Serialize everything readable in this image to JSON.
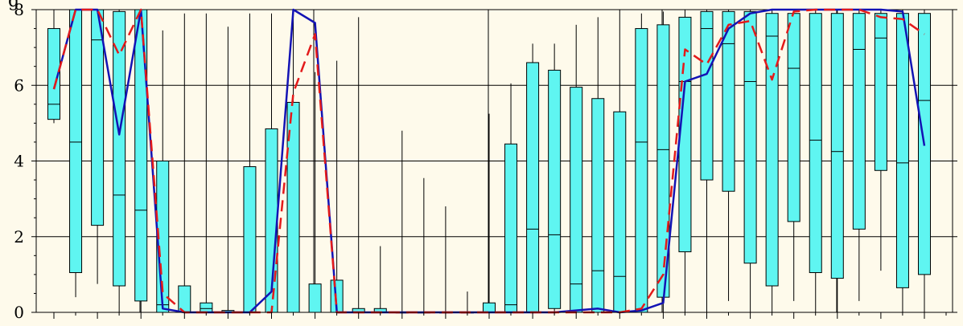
{
  "chart_data": {
    "type": "box",
    "title": "",
    "title_visible_fragment": "g",
    "xlabel": "",
    "ylabel": "",
    "ylim": [
      0,
      8
    ],
    "yticks": [
      0,
      2,
      4,
      6,
      8
    ],
    "grid": true,
    "colors": {
      "background": "#fefaeb",
      "box_fill": "#5ff5f1",
      "box_stroke": "#000000",
      "line_blue": "#1313b4",
      "line_red": "#e31a1a",
      "grid": "#000000"
    },
    "boxes": [
      {
        "x": 1,
        "min": 5.0,
        "q1": 5.1,
        "median": 5.5,
        "q3": 7.5,
        "max": 8.0
      },
      {
        "x": 2,
        "min": 0.4,
        "q1": 1.05,
        "median": 4.5,
        "q3": 8.0,
        "max": 8.0
      },
      {
        "x": 3,
        "min": 0.75,
        "q1": 2.3,
        "median": 7.2,
        "q3": 8.0,
        "max": 8.0
      },
      {
        "x": 4,
        "min": 0.0,
        "q1": 0.7,
        "median": 3.1,
        "q3": 7.95,
        "max": 8.0
      },
      {
        "x": 5,
        "min": 0.0,
        "q1": 0.3,
        "median": 2.7,
        "q3": 8.0,
        "max": 8.0
      },
      {
        "x": 6,
        "min": 0.0,
        "q1": 0.0,
        "median": 0.2,
        "q3": 4.0,
        "max": 7.45
      },
      {
        "x": 7,
        "min": 0.0,
        "q1": 0.0,
        "median": 0.0,
        "q3": 0.7,
        "max": 7.9
      },
      {
        "x": 8,
        "min": 0.0,
        "q1": 0.0,
        "median": 0.1,
        "q3": 0.25,
        "max": 7.9
      },
      {
        "x": 9,
        "min": 0.0,
        "q1": 0.0,
        "median": 0.0,
        "q3": 0.05,
        "max": 7.55
      },
      {
        "x": 10,
        "min": 0.0,
        "q1": 0.0,
        "median": 0.0,
        "q3": 3.85,
        "max": 7.9
      },
      {
        "x": 11,
        "min": 0.0,
        "q1": 0.0,
        "median": 0.0,
        "q3": 4.85,
        "max": 7.9
      },
      {
        "x": 12,
        "min": 0.0,
        "q1": 0.0,
        "median": 0.0,
        "q3": 5.55,
        "max": 7.95
      },
      {
        "x": 13,
        "min": 0.0,
        "q1": 0.0,
        "median": 0.0,
        "q3": 0.75,
        "max": 6.35
      },
      {
        "x": 14,
        "min": 0.0,
        "q1": 0.0,
        "median": 0.0,
        "q3": 0.85,
        "max": 6.65
      },
      {
        "x": 15,
        "min": 0.0,
        "q1": 0.0,
        "median": 0.0,
        "q3": 0.1,
        "max": 7.8
      },
      {
        "x": 16,
        "min": 0.0,
        "q1": 0.0,
        "median": 0.0,
        "q3": 0.1,
        "max": 1.75
      },
      {
        "x": 17,
        "min": 0.0,
        "q1": 0.0,
        "median": 0.0,
        "q3": 0.0,
        "max": 4.8
      },
      {
        "x": 18,
        "min": 0.0,
        "q1": 0.0,
        "median": 0.0,
        "q3": 0.0,
        "max": 3.55
      },
      {
        "x": 19,
        "min": 0.0,
        "q1": 0.0,
        "median": 0.0,
        "q3": 0.0,
        "max": 2.8
      },
      {
        "x": 20,
        "min": 0.0,
        "q1": 0.0,
        "median": 0.0,
        "q3": 0.0,
        "max": 0.55
      },
      {
        "x": 21,
        "min": 0.0,
        "q1": 0.0,
        "median": 0.0,
        "q3": 0.25,
        "max": 5.25
      },
      {
        "x": 22,
        "min": 0.0,
        "q1": 0.0,
        "median": 0.2,
        "q3": 4.45,
        "max": 6.05
      },
      {
        "x": 23,
        "min": 0.0,
        "q1": 0.0,
        "median": 2.2,
        "q3": 6.6,
        "max": 7.1
      },
      {
        "x": 24,
        "min": 0.0,
        "q1": 0.1,
        "median": 2.05,
        "q3": 6.4,
        "max": 7.1
      },
      {
        "x": 25,
        "min": 0.0,
        "q1": 0.0,
        "median": 0.75,
        "q3": 5.95,
        "max": 7.6
      },
      {
        "x": 26,
        "min": 0.0,
        "q1": 0.0,
        "median": 1.1,
        "q3": 5.65,
        "max": 7.8
      },
      {
        "x": 27,
        "min": 0.0,
        "q1": 0.0,
        "median": 0.95,
        "q3": 5.3,
        "max": 8.0
      },
      {
        "x": 28,
        "min": 0.0,
        "q1": 0.0,
        "median": 4.5,
        "q3": 7.5,
        "max": 7.9
      },
      {
        "x": 29,
        "min": 0.0,
        "q1": 0.4,
        "median": 4.3,
        "q3": 7.6,
        "max": 7.95
      },
      {
        "x": 30,
        "min": 0.0,
        "q1": 1.6,
        "median": 6.1,
        "q3": 7.8,
        "max": 8.0
      },
      {
        "x": 31,
        "min": 0.0,
        "q1": 3.5,
        "median": 7.5,
        "q3": 7.95,
        "max": 8.0
      },
      {
        "x": 32,
        "min": 0.3,
        "q1": 3.2,
        "median": 7.1,
        "q3": 7.95,
        "max": 8.0
      },
      {
        "x": 33,
        "min": 0.0,
        "q1": 1.3,
        "median": 6.1,
        "q3": 7.95,
        "max": 8.0
      },
      {
        "x": 34,
        "min": 0.0,
        "q1": 0.7,
        "median": 7.3,
        "q3": 7.9,
        "max": 8.0
      },
      {
        "x": 35,
        "min": 0.3,
        "q1": 2.4,
        "median": 6.45,
        "q3": 7.9,
        "max": 8.0
      },
      {
        "x": 36,
        "min": 0.0,
        "q1": 1.05,
        "median": 4.55,
        "q3": 7.9,
        "max": 8.0
      },
      {
        "x": 37,
        "min": 0.0,
        "q1": 0.9,
        "median": 4.25,
        "q3": 7.9,
        "max": 8.0
      },
      {
        "x": 38,
        "min": 0.3,
        "q1": 2.2,
        "median": 6.95,
        "q3": 7.9,
        "max": 8.0
      },
      {
        "x": 39,
        "min": 1.1,
        "q1": 3.75,
        "median": 7.25,
        "q3": 7.9,
        "max": 8.0
      },
      {
        "x": 40,
        "min": 0.0,
        "q1": 0.65,
        "median": 3.95,
        "q3": 7.9,
        "max": 8.0
      },
      {
        "x": 41,
        "min": 0.0,
        "q1": 1.0,
        "median": 5.6,
        "q3": 7.9,
        "max": 8.0
      }
    ],
    "series": [
      {
        "color_key": "line_blue",
        "style": "solid",
        "values": [
          5.9,
          8.0,
          8.0,
          4.7,
          8.0,
          0.1,
          0.0,
          0.0,
          0.0,
          0.0,
          0.55,
          8.0,
          7.65,
          0.0,
          0.0,
          0.0,
          0.0,
          0.0,
          0.0,
          0.0,
          0.0,
          0.0,
          0.0,
          0.0,
          0.05,
          0.1,
          0.0,
          0.05,
          0.25,
          6.1,
          6.3,
          7.5,
          7.9,
          8.0,
          8.0,
          8.0,
          8.0,
          8.0,
          8.0,
          7.95,
          4.4
        ]
      },
      {
        "color_key": "line_red",
        "style": "dashed",
        "values": [
          5.9,
          8.0,
          8.0,
          6.8,
          8.0,
          0.5,
          0.0,
          0.0,
          0.0,
          0.0,
          0.0,
          5.8,
          7.35,
          0.0,
          0.0,
          0.0,
          0.0,
          0.0,
          0.0,
          0.0,
          0.0,
          0.0,
          0.0,
          0.0,
          0.0,
          0.0,
          0.0,
          0.1,
          1.0,
          6.95,
          6.55,
          7.6,
          7.7,
          6.15,
          7.95,
          8.0,
          8.0,
          8.0,
          7.8,
          7.75,
          7.35
        ]
      }
    ]
  }
}
